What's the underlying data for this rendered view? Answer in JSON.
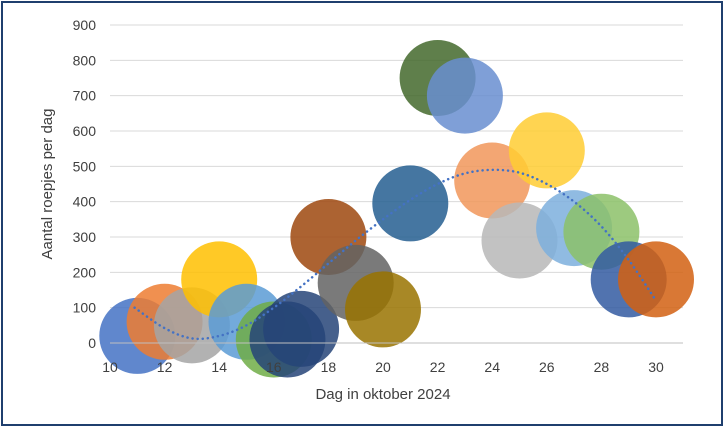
{
  "chart_data": {
    "type": "bubble",
    "xlabel": "Dag in oktober 2024",
    "ylabel": "Aantal roepjes per dag",
    "xlim": [
      10,
      31
    ],
    "ylim": [
      0,
      900
    ],
    "x_ticks": [
      10,
      12,
      14,
      16,
      18,
      20,
      22,
      24,
      26,
      28,
      30
    ],
    "y_ticks": [
      0,
      100,
      200,
      300,
      400,
      500,
      600,
      700,
      800,
      900
    ],
    "grid": "horizontal",
    "legend": "none",
    "trendline": {
      "type": "polynomial",
      "color": "#4472c4",
      "style": "dotted",
      "x_range": [
        10.9,
        30
      ],
      "points": [
        [
          10.9,
          100
        ],
        [
          12,
          42
        ],
        [
          13,
          13
        ],
        [
          14,
          20
        ],
        [
          15,
          50
        ],
        [
          16,
          100
        ],
        [
          17,
          160
        ],
        [
          18,
          225
        ],
        [
          19,
          290
        ],
        [
          20,
          350
        ],
        [
          21,
          405
        ],
        [
          22,
          450
        ],
        [
          23,
          480
        ],
        [
          24,
          490
        ],
        [
          25,
          482
        ],
        [
          26,
          450
        ],
        [
          27,
          400
        ],
        [
          28,
          330
        ],
        [
          29,
          235
        ],
        [
          30,
          120
        ]
      ]
    },
    "points": [
      {
        "x": 11,
        "y": 20,
        "color": "#4472c4"
      },
      {
        "x": 12,
        "y": 60,
        "color": "#ed7d31"
      },
      {
        "x": 13,
        "y": 50,
        "color": "#a5a5a5"
      },
      {
        "x": 14,
        "y": 180,
        "color": "#ffc000"
      },
      {
        "x": 15,
        "y": 60,
        "color": "#5b9bd5"
      },
      {
        "x": 16,
        "y": 10,
        "color": "#70ad47"
      },
      {
        "x": 16.5,
        "y": 10,
        "color": "#264478"
      },
      {
        "x": 17,
        "y": 40,
        "color": "#264478"
      },
      {
        "x": 18,
        "y": 300,
        "color": "#9e480e"
      },
      {
        "x": 19,
        "y": 170,
        "color": "#636363"
      },
      {
        "x": 20,
        "y": 95,
        "color": "#997300"
      },
      {
        "x": 21,
        "y": 395,
        "color": "#255e91"
      },
      {
        "x": 22,
        "y": 750,
        "color": "#43682b"
      },
      {
        "x": 23,
        "y": 700,
        "color": "#698ed0"
      },
      {
        "x": 24,
        "y": 460,
        "color": "#f1975a"
      },
      {
        "x": 25,
        "y": 290,
        "color": "#b7b7b7"
      },
      {
        "x": 26,
        "y": 545,
        "color": "#ffcd33"
      },
      {
        "x": 27,
        "y": 325,
        "color": "#7cafdd"
      },
      {
        "x": 28,
        "y": 315,
        "color": "#8cc168"
      },
      {
        "x": 29,
        "y": 180,
        "color": "#335aa1"
      },
      {
        "x": 30,
        "y": 180,
        "color": "#d26012"
      }
    ]
  }
}
